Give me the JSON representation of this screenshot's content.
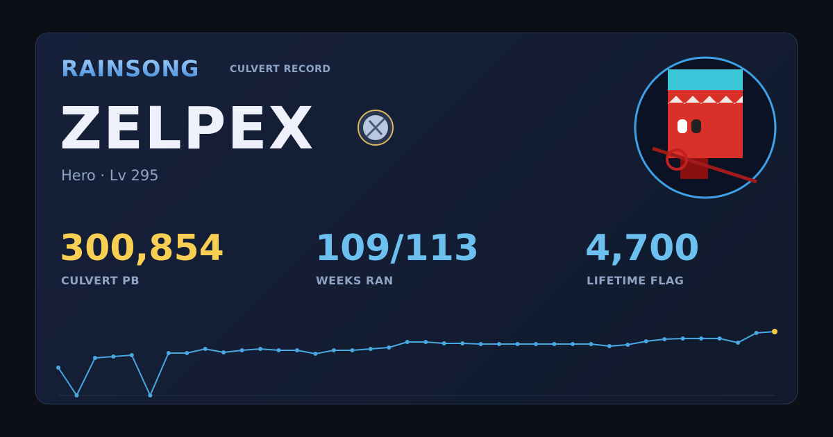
{
  "header": {
    "brand": "RAINSONG",
    "subtitle": "CULVERT RECORD"
  },
  "player": {
    "name": "ZELPEX",
    "info": "Hero · Lv 295"
  },
  "stats": [
    {
      "value": "300,854",
      "label": "CULVERT PB"
    },
    {
      "value": "109/113",
      "label": "WEEKS RAN"
    },
    {
      "value": "4,700",
      "label": "LIFETIME FLAG"
    }
  ],
  "chart_data": {
    "type": "line",
    "color": "#4aa8e0",
    "highlight_color": "#f5c842",
    "values": [
      130800,
      0,
      176600,
      183100,
      189700,
      0,
      199500,
      199500,
      219100,
      202700,
      212600,
      219100,
      212600,
      212600,
      196200,
      212600,
      212600,
      219100,
      225600,
      251800,
      251800,
      245300,
      245300,
      242000,
      242000,
      242000,
      242000,
      242000,
      242000,
      242000,
      232200,
      238700,
      255100,
      264900,
      268100,
      268100,
      268100,
      248500,
      294300,
      300854
    ]
  }
}
